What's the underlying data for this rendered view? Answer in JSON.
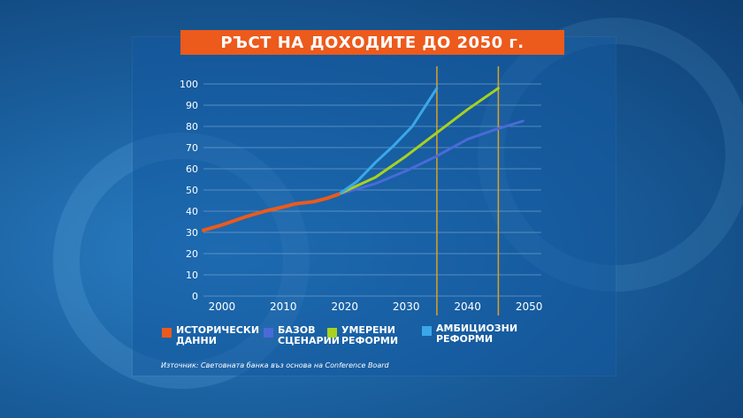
{
  "title": "РЪСТ НА ДОХОДИТЕ ДО 2050 г.",
  "source": "Източник: Световната банка въз основа на Conference Board",
  "colors": {
    "historical": "#ec5a1c",
    "base": "#4a6ad8",
    "moderate": "#a8d21e",
    "ambitious": "#3aa8e8",
    "marker": "#e0a020",
    "grid": "#6fa2cf"
  },
  "legend": [
    {
      "label": "ИСТОРИЧЕСКИ ДАННИ",
      "color": "#ec5a1c"
    },
    {
      "label": "БАЗОВ СЦЕНАРИЙ",
      "color": "#4a6ad8"
    },
    {
      "label": "УМЕРЕНИ РЕФОРМИ",
      "color": "#a8d21e"
    },
    {
      "label": "АМБИЦИОЗНИ РЕФОРМИ",
      "color": "#3aa8e8"
    }
  ],
  "chart_data": {
    "type": "line",
    "xlim": [
      1997,
      2052
    ],
    "ylim": [
      0,
      100
    ],
    "xticks": [
      2000,
      2010,
      2020,
      2030,
      2040,
      2050
    ],
    "yticks": [
      0,
      10,
      20,
      30,
      40,
      50,
      60,
      70,
      80,
      90,
      100
    ],
    "grid": true,
    "legend_position": "bottom",
    "vertical_markers": [
      2035,
      2045
    ],
    "series": [
      {
        "name": "ИСТОРИЧЕСКИ ДАННИ",
        "color": "#ec5a1c",
        "x": [
          1997,
          2000,
          2004,
          2007,
          2010,
          2012,
          2015,
          2017,
          2019
        ],
        "y": [
          31,
          33.5,
          37.5,
          40,
          42,
          43.5,
          44.5,
          46,
          48
        ]
      },
      {
        "name": "БАЗОВ СЦЕНАРИЙ",
        "color": "#4a6ad8",
        "x": [
          2019,
          2025,
          2030,
          2035,
          2040,
          2045,
          2049
        ],
        "y": [
          48,
          53,
          59,
          66,
          74,
          79,
          82.5
        ]
      },
      {
        "name": "УМЕРЕНИ РЕФОРМИ",
        "color": "#a8d21e",
        "x": [
          2019,
          2025,
          2030,
          2035,
          2040,
          2045
        ],
        "y": [
          48,
          56,
          66,
          77,
          88,
          98
        ]
      },
      {
        "name": "АМБИЦИОЗНИ РЕФОРМИ",
        "color": "#3aa8e8",
        "x": [
          2019,
          2022,
          2025,
          2028,
          2031,
          2035
        ],
        "y": [
          48,
          54,
          63,
          71,
          80,
          98
        ]
      }
    ]
  }
}
